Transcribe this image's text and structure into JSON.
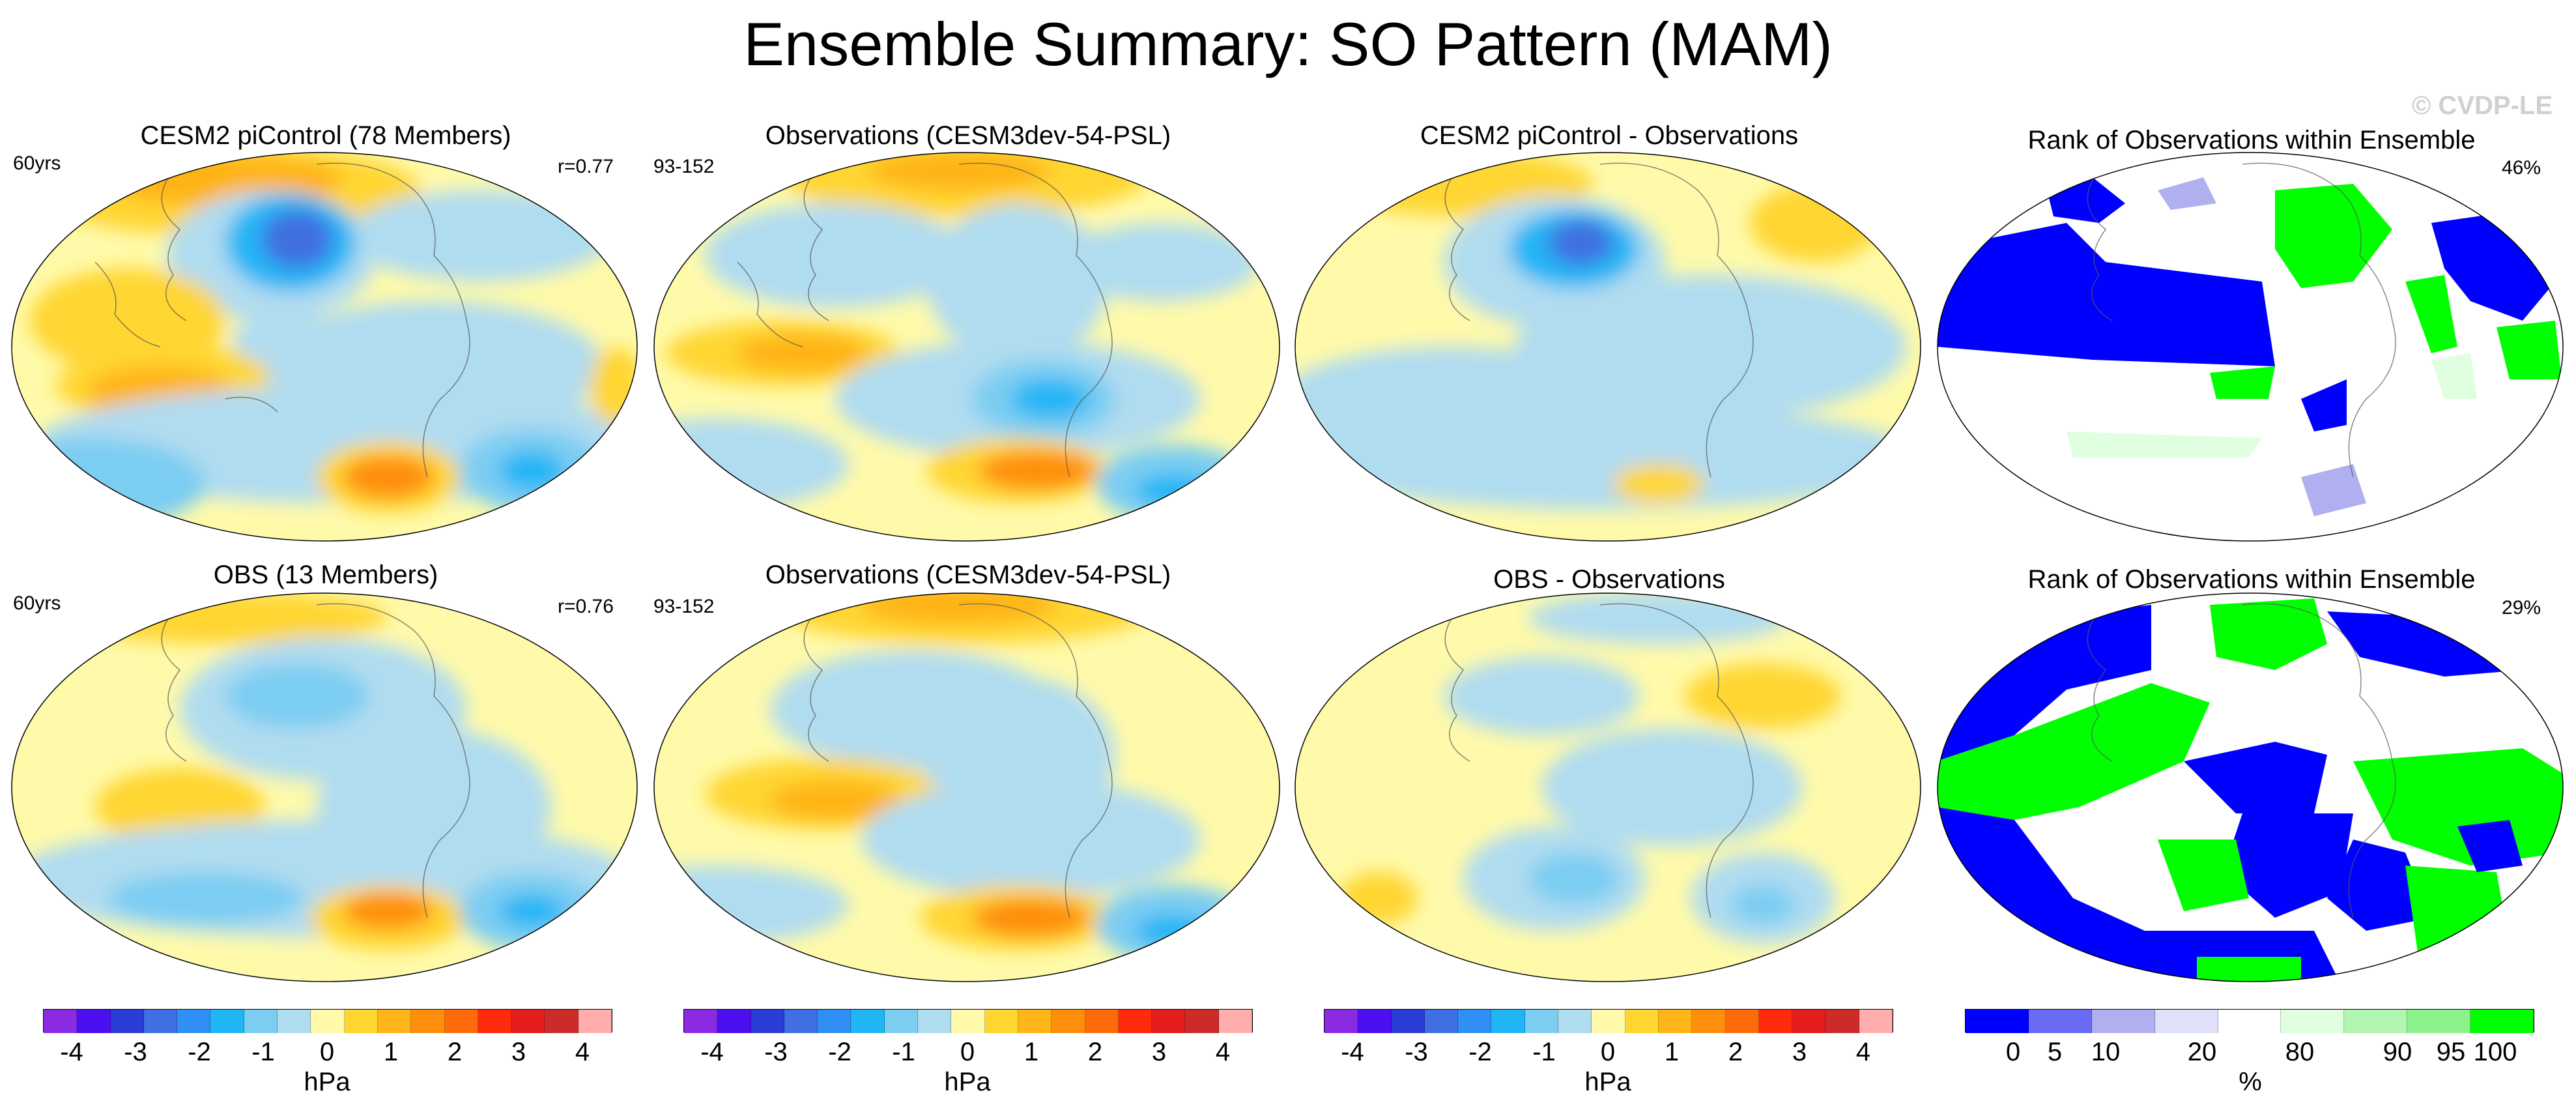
{
  "figure": {
    "title": "Ensemble Summary: SO Pattern (MAM)",
    "watermark": "© CVDP-LE"
  },
  "panels": [
    {
      "title": "CESM2 piControl (78 Members)",
      "left_note": "60yrs",
      "right_note": "r=0.77"
    },
    {
      "title": "Observations (CESM3dev-54-PSL)",
      "left_note": "93-152",
      "right_note": ""
    },
    {
      "title": "CESM2 piControl - Observations",
      "left_note": "",
      "right_note": ""
    },
    {
      "title": "Rank of Observations within Ensemble",
      "left_note": "",
      "right_note": "46%"
    },
    {
      "title": "OBS (13 Members)",
      "left_note": "60yrs",
      "right_note": "r=0.76"
    },
    {
      "title": "Observations (CESM3dev-54-PSL)",
      "left_note": "93-152",
      "right_note": ""
    },
    {
      "title": "OBS - Observations",
      "left_note": "",
      "right_note": ""
    },
    {
      "title": "Rank of Observations within Ensemble",
      "left_note": "",
      "right_note": "29%"
    }
  ],
  "colorbars": [
    {
      "unit": "hPa",
      "ticks": [
        "-4",
        "-3",
        "-2",
        "-1",
        "0",
        "1",
        "2",
        "3",
        "4"
      ],
      "colors": [
        "#8a2be2",
        "#4b0ff0",
        "#2a3cd6",
        "#3f6fe0",
        "#2f8ff5",
        "#20b5f5",
        "#7ccdf2",
        "#b0dcf0",
        "#fffaaa",
        "#ffd631",
        "#ffb417",
        "#ff8e0d",
        "#ff6a0a",
        "#ff2b0c",
        "#e51d1d",
        "#cd2a2a",
        "#ffadad"
      ]
    },
    {
      "unit": "hPa",
      "ticks": [
        "-4",
        "-3",
        "-2",
        "-1",
        "0",
        "1",
        "2",
        "3",
        "4"
      ],
      "colors": [
        "#8a2be2",
        "#4b0ff0",
        "#2a3cd6",
        "#3f6fe0",
        "#2f8ff5",
        "#20b5f5",
        "#7ccdf2",
        "#b0dcf0",
        "#fffaaa",
        "#ffd631",
        "#ffb417",
        "#ff8e0d",
        "#ff6a0a",
        "#ff2b0c",
        "#e51d1d",
        "#cd2a2a",
        "#ffadad"
      ]
    },
    {
      "unit": "hPa",
      "ticks": [
        "-4",
        "-3",
        "-2",
        "-1",
        "0",
        "1",
        "2",
        "3",
        "4"
      ],
      "colors": [
        "#8a2be2",
        "#4b0ff0",
        "#2a3cd6",
        "#3f6fe0",
        "#2f8ff5",
        "#20b5f5",
        "#7ccdf2",
        "#b0dcf0",
        "#fffaaa",
        "#ffd631",
        "#ffb417",
        "#ff8e0d",
        "#ff6a0a",
        "#ff2b0c",
        "#e51d1d",
        "#cd2a2a",
        "#ffadad"
      ]
    },
    {
      "unit": "%",
      "ticks": [
        "0",
        "5",
        "10",
        "20",
        "80",
        "90",
        "95",
        "100"
      ],
      "colors": [
        "#0000ff",
        "#6a6af5",
        "#b0b0f0",
        "#e0e0fa",
        "#ffffff",
        "#e0ffe0",
        "#b0f5b0",
        "#8cf28c",
        "#00ff00"
      ]
    }
  ],
  "chart_data": [
    {
      "type": "heatmap",
      "title": "CESM2 piControl (78 Members)",
      "projection": "Robinson (Pacific-centered)",
      "field": "SO pattern sea level pressure (MAM)",
      "unit": "hPa",
      "levels": [
        -4,
        -3.5,
        -3,
        -2.5,
        -2,
        -1.5,
        -1,
        -0.5,
        0,
        0.5,
        1,
        1.5,
        2,
        2.5,
        3,
        3.5,
        4
      ],
      "annotations": [
        "60yrs",
        "r=0.77"
      ]
    },
    {
      "type": "heatmap",
      "title": "Observations (CESM3dev-54-PSL)",
      "projection": "Robinson (Pacific-centered)",
      "field": "SO pattern sea level pressure (MAM)",
      "unit": "hPa",
      "annotations": [
        "93-152"
      ]
    },
    {
      "type": "heatmap",
      "title": "CESM2 piControl - Observations",
      "projection": "Robinson (Pacific-centered)",
      "field": "difference",
      "unit": "hPa"
    },
    {
      "type": "heatmap",
      "title": "Rank of Observations within Ensemble",
      "projection": "Robinson (Pacific-centered)",
      "unit": "%",
      "levels": [
        0,
        5,
        10,
        20,
        80,
        90,
        95,
        100
      ],
      "annotations": [
        "46%"
      ]
    },
    {
      "type": "heatmap",
      "title": "OBS (13 Members)",
      "projection": "Robinson (Pacific-centered)",
      "field": "SO pattern sea level pressure (MAM)",
      "unit": "hPa",
      "annotations": [
        "60yrs",
        "r=0.76"
      ]
    },
    {
      "type": "heatmap",
      "title": "Observations (CESM3dev-54-PSL)",
      "projection": "Robinson (Pacific-centered)",
      "field": "SO pattern sea level pressure (MAM)",
      "unit": "hPa",
      "annotations": [
        "93-152"
      ]
    },
    {
      "type": "heatmap",
      "title": "OBS - Observations",
      "projection": "Robinson (Pacific-centered)",
      "field": "difference",
      "unit": "hPa"
    },
    {
      "type": "heatmap",
      "title": "Rank of Observations within Ensemble",
      "projection": "Robinson (Pacific-centered)",
      "unit": "%",
      "levels": [
        0,
        5,
        10,
        20,
        80,
        90,
        95,
        100
      ],
      "annotations": [
        "29%"
      ]
    }
  ]
}
